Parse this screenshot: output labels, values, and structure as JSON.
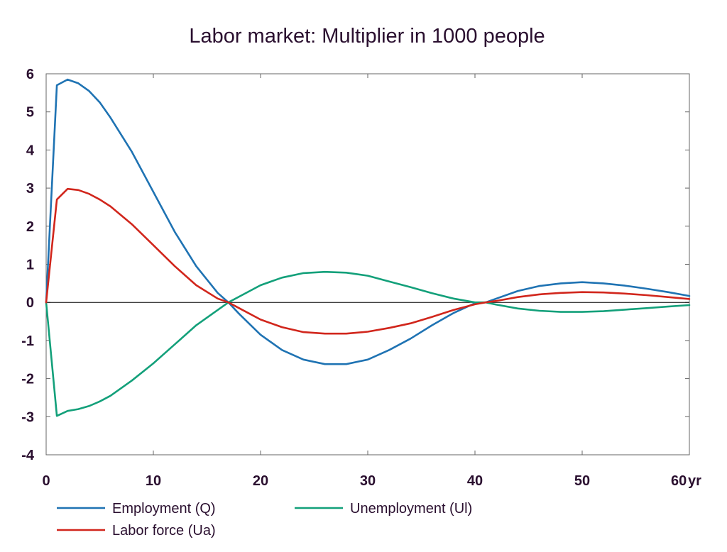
{
  "chart_data": {
    "type": "line",
    "title": "Labor market: Multiplier in 1000 people",
    "xlabel": "",
    "ylabel": "",
    "x_unit_label": "yr",
    "xlim": [
      0,
      60
    ],
    "ylim": [
      -4,
      6
    ],
    "x_ticks": [
      0,
      10,
      20,
      30,
      40,
      50,
      60
    ],
    "y_ticks": [
      -4,
      -3,
      -2,
      -1,
      0,
      1,
      2,
      3,
      4,
      5,
      6
    ],
    "grid": false,
    "zero_line": true,
    "legend_position": "bottom",
    "series": [
      {
        "name": "Employment (Q)",
        "color": "#1f73b3",
        "x": [
          0,
          1,
          2,
          3,
          4,
          5,
          6,
          8,
          10,
          12,
          14,
          16,
          17,
          18,
          20,
          22,
          24,
          26,
          28,
          30,
          32,
          34,
          36,
          38,
          40,
          41,
          42,
          44,
          46,
          48,
          50,
          52,
          54,
          56,
          58,
          60
        ],
        "y": [
          0,
          5.7,
          5.85,
          5.75,
          5.55,
          5.25,
          4.85,
          3.95,
          2.9,
          1.85,
          0.95,
          0.25,
          0.0,
          -0.3,
          -0.85,
          -1.25,
          -1.5,
          -1.62,
          -1.62,
          -1.5,
          -1.25,
          -0.95,
          -0.6,
          -0.28,
          -0.02,
          0.0,
          0.1,
          0.3,
          0.43,
          0.5,
          0.53,
          0.5,
          0.44,
          0.36,
          0.27,
          0.17
        ]
      },
      {
        "name": "Unemployment (Ul)",
        "color": "#13a07a",
        "x": [
          0,
          1,
          2,
          3,
          4,
          5,
          6,
          8,
          10,
          12,
          14,
          16,
          17,
          18,
          20,
          22,
          24,
          26,
          28,
          30,
          32,
          34,
          36,
          38,
          40,
          41,
          42,
          44,
          46,
          48,
          50,
          52,
          54,
          56,
          58,
          60
        ],
        "y": [
          0,
          -2.98,
          -2.85,
          -2.8,
          -2.72,
          -2.6,
          -2.45,
          -2.05,
          -1.6,
          -1.1,
          -0.6,
          -0.2,
          0.0,
          0.15,
          0.45,
          0.65,
          0.77,
          0.8,
          0.78,
          0.7,
          0.55,
          0.4,
          0.24,
          0.1,
          0.0,
          0.0,
          -0.06,
          -0.16,
          -0.22,
          -0.25,
          -0.25,
          -0.23,
          -0.19,
          -0.15,
          -0.11,
          -0.07
        ]
      },
      {
        "name": "Labor force (Ua)",
        "color": "#d1261c",
        "x": [
          0,
          1,
          2,
          3,
          4,
          5,
          6,
          8,
          10,
          12,
          14,
          16,
          17,
          18,
          20,
          22,
          24,
          26,
          28,
          30,
          32,
          34,
          36,
          38,
          40,
          41,
          42,
          44,
          46,
          48,
          50,
          52,
          54,
          56,
          58,
          60
        ],
        "y": [
          0,
          2.7,
          2.98,
          2.95,
          2.85,
          2.7,
          2.52,
          2.05,
          1.5,
          0.95,
          0.45,
          0.1,
          0.0,
          -0.15,
          -0.45,
          -0.65,
          -0.78,
          -0.82,
          -0.82,
          -0.77,
          -0.67,
          -0.55,
          -0.38,
          -0.2,
          -0.05,
          0.0,
          0.04,
          0.14,
          0.21,
          0.25,
          0.27,
          0.26,
          0.23,
          0.19,
          0.14,
          0.09
        ]
      }
    ]
  }
}
